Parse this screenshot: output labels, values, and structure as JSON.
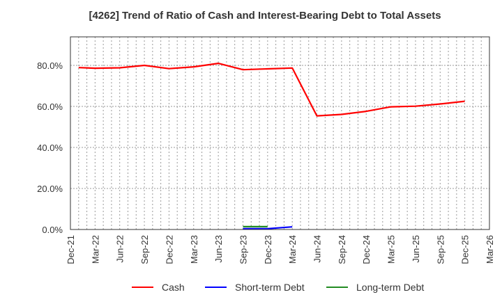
{
  "chart_data": {
    "type": "line",
    "title": "[4262]  Trend of Ratio of Cash and Interest-Bearing Debt to Total Assets",
    "xlabel": "",
    "ylabel": "",
    "ylim": [
      0,
      93.9
    ],
    "y_ticks": [
      "0.0%",
      "20.0%",
      "40.0%",
      "60.0%",
      "80.0%"
    ],
    "y_tick_values": [
      0,
      20,
      40,
      60,
      80
    ],
    "x_ticks": [
      "Dec-21",
      "Mar-22",
      "Jun-22",
      "Sep-22",
      "Dec-22",
      "Mar-23",
      "Jun-23",
      "Sep-23",
      "Dec-23",
      "Mar-24",
      "Jun-24",
      "Sep-24",
      "Dec-24",
      "Mar-25",
      "Jun-25",
      "Sep-25",
      "Dec-25",
      "Mar-26"
    ],
    "grid": true,
    "legend_position": "bottom",
    "series": [
      {
        "name": "Cash",
        "color": "#ff0000",
        "points": [
          {
            "x": "Jan-22",
            "m": 1,
            "y": 78.9
          },
          {
            "x": "Mar-22",
            "m": 3,
            "y": 78.6
          },
          {
            "x": "Jun-22",
            "m": 6,
            "y": 78.8
          },
          {
            "x": "Sep-22",
            "m": 9,
            "y": 80.0
          },
          {
            "x": "Dec-22",
            "m": 12,
            "y": 78.4
          },
          {
            "x": "Mar-23",
            "m": 15,
            "y": 79.3
          },
          {
            "x": "Jun-23",
            "m": 18,
            "y": 81.0
          },
          {
            "x": "Sep-23",
            "m": 21,
            "y": 77.9
          },
          {
            "x": "Dec-23",
            "m": 24,
            "y": 78.3
          },
          {
            "x": "Mar-24",
            "m": 27,
            "y": 78.7
          },
          {
            "x": "Jun-24",
            "m": 30,
            "y": 55.4
          },
          {
            "x": "Sep-24",
            "m": 33,
            "y": 56.1
          },
          {
            "x": "Dec-24",
            "m": 36,
            "y": 57.6
          },
          {
            "x": "Mar-25",
            "m": 39,
            "y": 59.8
          },
          {
            "x": "Jun-25",
            "m": 42,
            "y": 60.1
          },
          {
            "x": "Sep-25",
            "m": 45,
            "y": 61.2
          },
          {
            "x": "Dec-25",
            "m": 48,
            "y": 62.5
          }
        ]
      },
      {
        "name": "Short-term Debt",
        "color": "#0000ff",
        "points": [
          {
            "x": "Sep-23",
            "m": 21,
            "y": 0.4
          },
          {
            "x": "Dec-23",
            "m": 24,
            "y": 0.4
          },
          {
            "x": "Mar-24",
            "m": 27,
            "y": 1.3
          }
        ]
      },
      {
        "name": "Long-term Debt",
        "color": "#228b22",
        "points": [
          {
            "x": "Sep-23",
            "m": 21,
            "y": 1.4
          },
          {
            "x": "Dec-23",
            "m": 24,
            "y": 1.4
          }
        ]
      }
    ]
  },
  "legend": {
    "items": [
      {
        "label": "Cash",
        "color": "#ff0000"
      },
      {
        "label": "Short-term Debt",
        "color": "#0000ff"
      },
      {
        "label": "Long-term Debt",
        "color": "#228b22"
      }
    ]
  }
}
